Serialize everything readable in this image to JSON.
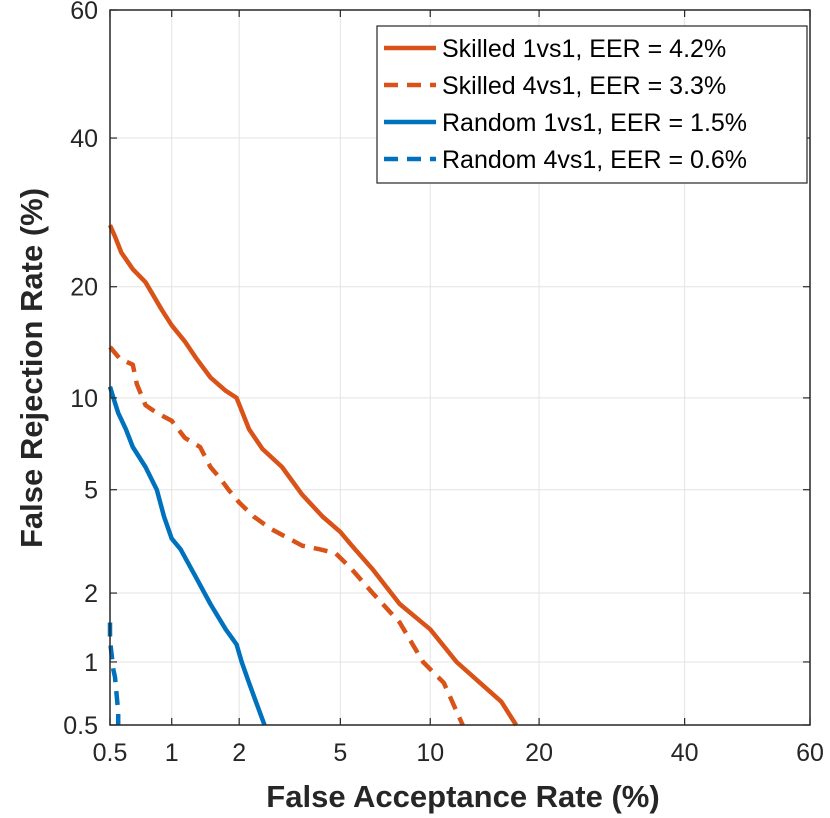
{
  "chart_data": {
    "type": "line",
    "title": "",
    "xlabel": "False Acceptance Rate (%)",
    "ylabel": "False Rejection Rate (%)",
    "scale": "normal-deviate (DET)",
    "xlim": [
      0.5,
      60
    ],
    "ylim": [
      0.5,
      60
    ],
    "x_ticks": [
      0.5,
      1,
      2,
      5,
      10,
      20,
      40,
      60
    ],
    "x_tick_labels": [
      "0.5",
      "1",
      "2",
      "5",
      "10",
      "20",
      "40",
      "60"
    ],
    "y_ticks": [
      0.5,
      1,
      2,
      5,
      10,
      20,
      40,
      60
    ],
    "y_tick_labels": [
      "0.5",
      "1",
      "2",
      "5",
      "10",
      "20",
      "40",
      "60"
    ],
    "grid": true,
    "legend_position": "top-right",
    "series": [
      {
        "name": "Skilled 1vs1, EER = 4.2%",
        "color": "#d95319",
        "dash": "solid",
        "x": [
          0.5,
          0.53,
          0.57,
          0.65,
          0.75,
          0.9,
          1.0,
          1.15,
          1.3,
          1.5,
          1.75,
          1.95,
          2.2,
          2.5,
          3.0,
          3.6,
          4.3,
          5.0,
          5.5,
          6.5,
          8.0,
          10.0,
          12.0,
          14.0,
          16.0,
          17.5
        ],
        "y": [
          27.5,
          26.0,
          24.0,
          22.0,
          20.5,
          17.5,
          16.0,
          14.5,
          13.0,
          11.5,
          10.5,
          10.0,
          8.0,
          6.9,
          6.0,
          4.8,
          4.0,
          3.5,
          3.1,
          2.5,
          1.8,
          1.4,
          1.0,
          0.8,
          0.65,
          0.5
        ]
      },
      {
        "name": "Skilled 4vs1, EER = 3.3%",
        "color": "#d95319",
        "dash": "dashed",
        "x": [
          0.5,
          0.56,
          0.65,
          0.68,
          0.75,
          0.85,
          1.0,
          1.15,
          1.35,
          1.5,
          1.65,
          1.8,
          2.0,
          2.3,
          2.7,
          3.2,
          3.6,
          4.2,
          4.8,
          5.5,
          6.5,
          8.0,
          9.5,
          11.0,
          12.5
        ],
        "y": [
          14.0,
          13.0,
          12.5,
          11.0,
          9.5,
          9.0,
          8.5,
          7.5,
          7.0,
          6.0,
          5.5,
          5.0,
          4.5,
          4.0,
          3.6,
          3.3,
          3.1,
          3.0,
          2.9,
          2.5,
          2.0,
          1.5,
          1.0,
          0.8,
          0.5
        ]
      },
      {
        "name": "Random 1vs1, EER = 1.5%",
        "color": "#0072bd",
        "dash": "solid",
        "x": [
          0.5,
          0.52,
          0.55,
          0.6,
          0.65,
          0.75,
          0.85,
          0.92,
          1.0,
          1.1,
          1.3,
          1.5,
          1.75,
          1.95,
          2.05,
          2.2,
          2.35,
          2.55
        ],
        "y": [
          10.8,
          10.0,
          9.0,
          8.0,
          7.0,
          6.0,
          5.0,
          4.0,
          3.3,
          3.0,
          2.3,
          1.8,
          1.4,
          1.2,
          1.0,
          0.8,
          0.65,
          0.5
        ]
      },
      {
        "name": "Random 4vs1, EER = 0.6%",
        "color": "#0072bd",
        "dash": "dashed",
        "x": [
          0.5,
          0.5,
          0.52,
          0.53,
          0.55,
          0.55
        ],
        "y": [
          1.5,
          1.25,
          0.92,
          0.85,
          0.58,
          0.5
        ]
      }
    ]
  }
}
